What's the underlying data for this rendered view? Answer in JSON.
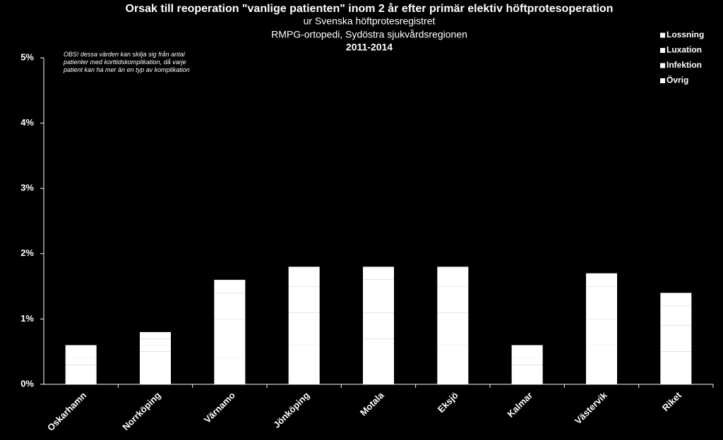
{
  "chart_data": {
    "type": "stacked-bar",
    "title": "Orsak till reoperation \"vanlige patienten\" inom 2 år efter primär elektiv höftprotesoperation",
    "subtitle": [
      "ur Svenska höftprotesregistret",
      "RMPG-ortopedi, Sydöstra sjukvårdsregionen"
    ],
    "period": "2011-2014",
    "note": [
      "OBS! dessa värden kan skilja sig från antal",
      "patienter med korttidskomplikation, då varje",
      "patient kan ha mer än en typ av komplikation"
    ],
    "categories": [
      "Oskarhamn",
      "Norrköping",
      "Värnamo",
      "Jönköping",
      "Motala",
      "Eksjö",
      "Kalmar",
      "Västervik",
      "Riket"
    ],
    "series": [
      {
        "name": "Lossning",
        "color": "#ffffff",
        "values": [
          0.3,
          0.5,
          0.4,
          0.6,
          0.7,
          0.6,
          0.3,
          0.6,
          0.5
        ]
      },
      {
        "name": "Luxation",
        "color": "#ffffff",
        "values": [
          0.1,
          0.1,
          0.6,
          0.5,
          0.4,
          0.5,
          0.1,
          0.4,
          0.4
        ]
      },
      {
        "name": "Infektion",
        "color": "#ffffff",
        "values": [
          0.2,
          0.1,
          0.4,
          0.4,
          0.5,
          0.4,
          0.2,
          0.5,
          0.3
        ]
      },
      {
        "name": "Övrig",
        "color": "#ffffff",
        "values": [
          0,
          0.1,
          0.2,
          0.3,
          0.2,
          0.3,
          0,
          0.2,
          0.2
        ]
      }
    ],
    "ylim": [
      0,
      5
    ],
    "yticks": [
      {
        "value": 0,
        "label": "0%"
      },
      {
        "value": 1,
        "label": "1%"
      },
      {
        "value": 2,
        "label": "2%"
      },
      {
        "value": 3,
        "label": "3%"
      },
      {
        "value": 4,
        "label": "4%"
      },
      {
        "value": 5,
        "label": "5%"
      }
    ],
    "grid": false
  }
}
